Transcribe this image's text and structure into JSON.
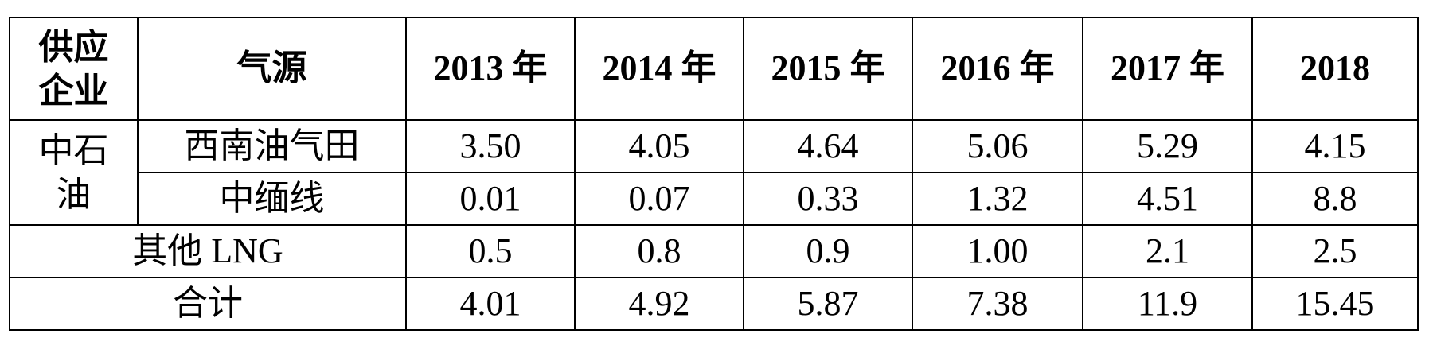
{
  "table": {
    "header": [
      "供应企业",
      "气源",
      "2013 年",
      "2014 年",
      "2015 年",
      "2016 年",
      "2017 年",
      "2018"
    ],
    "company": "中石油",
    "rows": [
      {
        "source": "西南油气田",
        "values": [
          "3.50",
          "4.05",
          "4.64",
          "5.06",
          "5.29",
          "4.15"
        ]
      },
      {
        "source": "中缅线",
        "values": [
          "0.01",
          "0.07",
          "0.33",
          "1.32",
          "4.51",
          "8.8"
        ]
      },
      {
        "label": "其他 LNG",
        "values": [
          "0.5",
          "0.8",
          "0.9",
          "1.00",
          "2.1",
          "2.5"
        ]
      },
      {
        "label": "合计",
        "values": [
          "4.01",
          "4.92",
          "5.87",
          "7.38",
          "11.9",
          "15.45"
        ]
      }
    ]
  }
}
